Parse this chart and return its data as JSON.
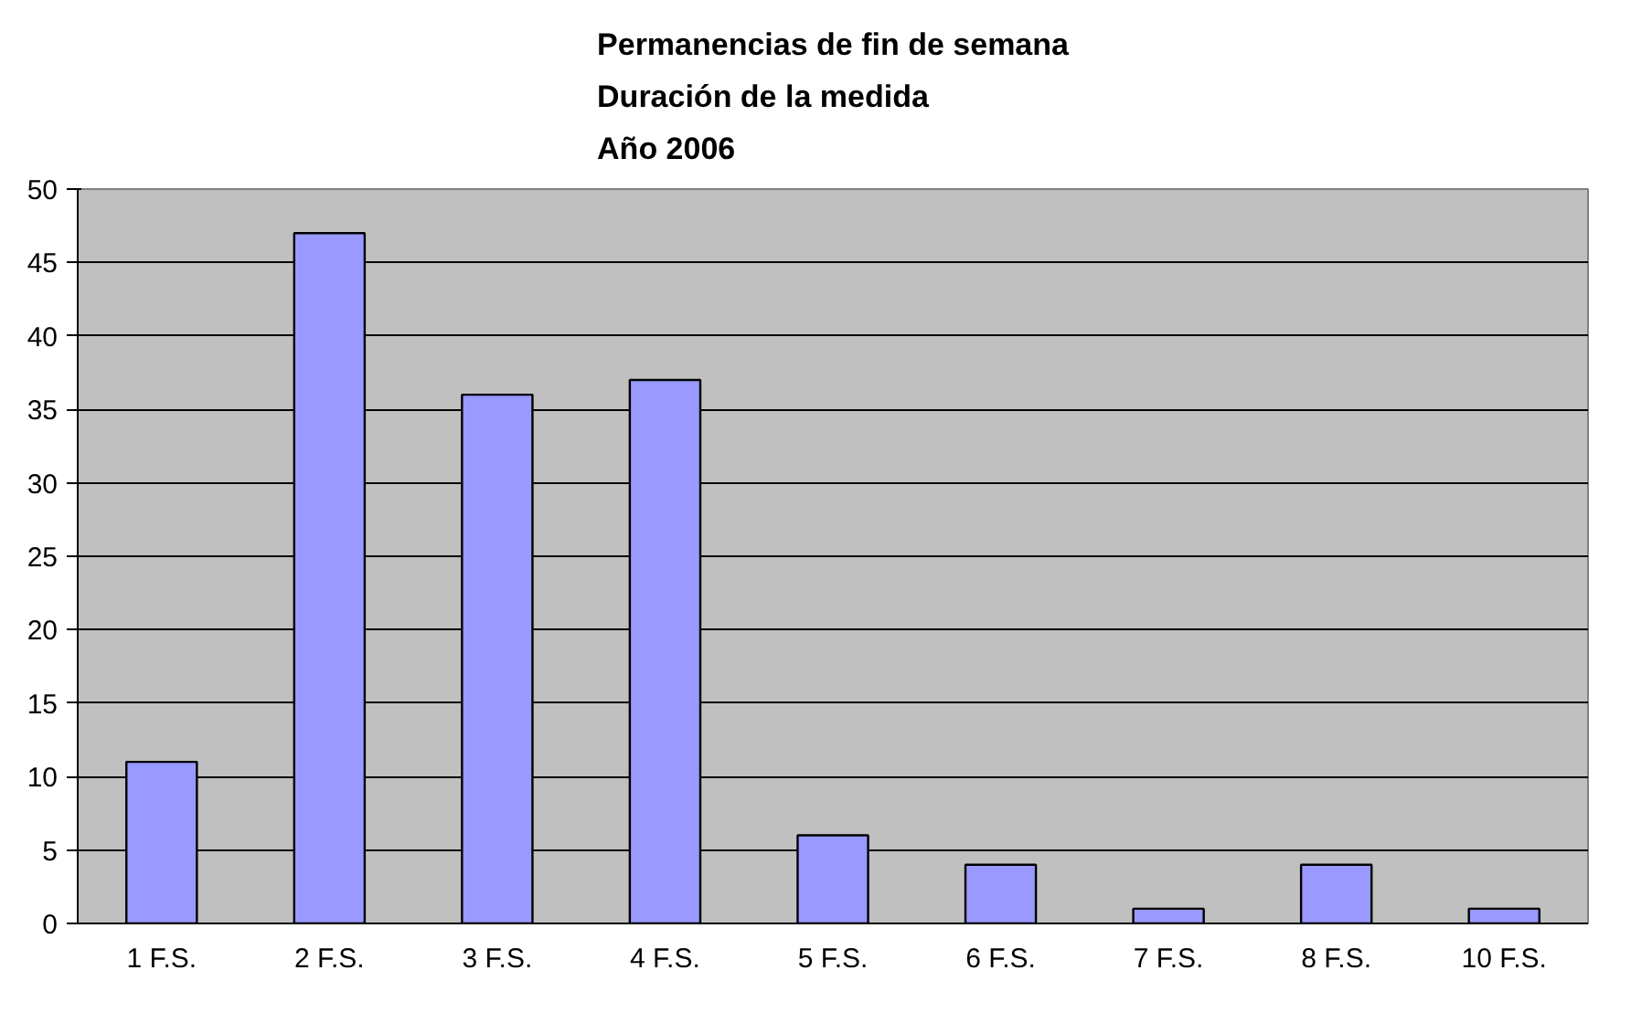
{
  "chart_data": {
    "type": "bar",
    "title": "Permanencias de fin de semana\nDuración de la medida\nAño 2006",
    "categories": [
      "1 F.S.",
      "2 F.S.",
      "3 F.S.",
      "4 F.S.",
      "5 F.S.",
      "6 F.S.",
      "7 F.S.",
      "8 F.S.",
      "10 F.S."
    ],
    "values": [
      11,
      47,
      36,
      37,
      6,
      4,
      1,
      4,
      1
    ],
    "color": "#9999ff",
    "ylim": [
      0,
      50
    ],
    "yticks": [
      0,
      5,
      10,
      15,
      20,
      25,
      30,
      35,
      40,
      45,
      50
    ],
    "grid": "y"
  }
}
